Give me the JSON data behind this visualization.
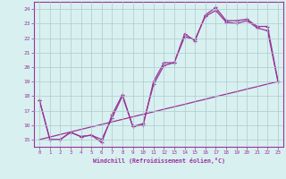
{
  "xlabel": "Windchill (Refroidissement éolien,°C)",
  "x": [
    0,
    1,
    2,
    3,
    4,
    5,
    6,
    7,
    8,
    9,
    10,
    11,
    12,
    13,
    14,
    15,
    16,
    17,
    18,
    19,
    20,
    21,
    22,
    23
  ],
  "s1": [
    17.7,
    15.0,
    15.0,
    15.5,
    15.2,
    15.3,
    14.8,
    16.7,
    18.1,
    15.9,
    16.0,
    19.0,
    20.3,
    20.3,
    22.3,
    21.8,
    23.6,
    24.1,
    23.2,
    23.2,
    23.3,
    22.8,
    22.8,
    19.0
  ],
  "s2": [
    17.7,
    15.0,
    15.0,
    15.5,
    15.2,
    15.3,
    15.0,
    16.5,
    18.0,
    15.9,
    16.1,
    18.8,
    20.1,
    20.3,
    22.1,
    21.9,
    23.5,
    23.9,
    23.1,
    23.0,
    23.2,
    22.7,
    22.5,
    19.0
  ],
  "s3": [
    15.0,
    15.17,
    15.35,
    15.52,
    15.7,
    15.87,
    16.04,
    16.22,
    16.39,
    16.57,
    16.74,
    16.91,
    17.09,
    17.26,
    17.43,
    17.61,
    17.78,
    17.96,
    18.13,
    18.3,
    18.48,
    18.65,
    18.83,
    19.0
  ],
  "ylim": [
    14.5,
    24.5
  ],
  "xlim": [
    -0.5,
    23.5
  ],
  "yticks": [
    15,
    16,
    17,
    18,
    19,
    20,
    21,
    22,
    23,
    24
  ],
  "xticks": [
    0,
    1,
    2,
    3,
    4,
    5,
    6,
    7,
    8,
    9,
    10,
    11,
    12,
    13,
    14,
    15,
    16,
    17,
    18,
    19,
    20,
    21,
    22,
    23
  ],
  "line_color": "#993399",
  "bg_color": "#d9f0f0",
  "grid_color": "#aacccc",
  "spine_color": "#993399",
  "tick_color": "#993399",
  "label_color": "#993399"
}
